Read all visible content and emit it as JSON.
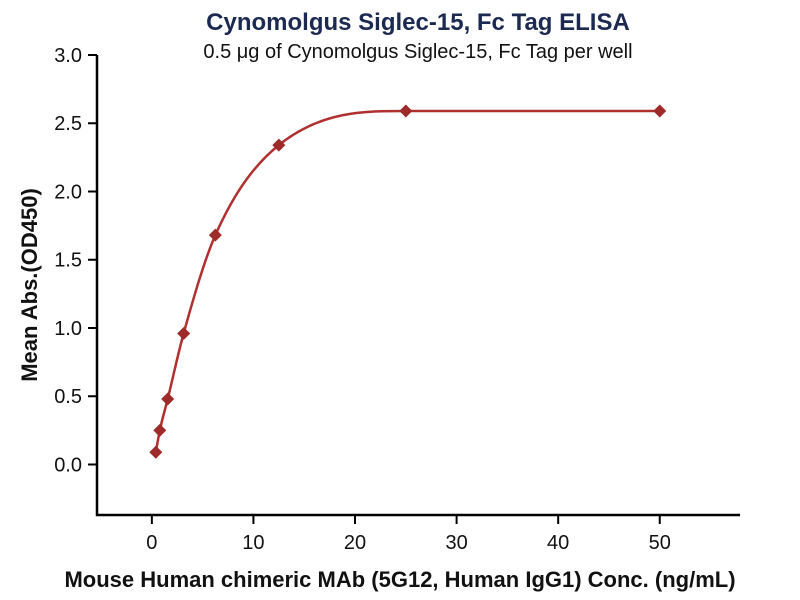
{
  "chart_data": {
    "type": "scatter",
    "title": "Cynomolgus Siglec-15, Fc Tag ELISA",
    "subtitle": "0.5 μg of Cynomolgus Siglec-15, Fc Tag per well",
    "xlabel": "Mouse Human chimeric MAb (5G12, Human IgG1) Conc. (ng/mL)",
    "ylabel": "Mean Abs.(OD450)",
    "x": [
      0.39,
      0.78,
      1.56,
      3.13,
      6.25,
      12.5,
      25,
      50
    ],
    "y": [
      0.09,
      0.25,
      0.48,
      0.96,
      1.68,
      2.34,
      2.59,
      2.59
    ],
    "x_ticks": [
      0,
      10,
      20,
      30,
      40,
      50
    ],
    "x_tick_labels": [
      "0",
      "10",
      "20",
      "30",
      "40",
      "50"
    ],
    "y_ticks": [
      0,
      0.5,
      1,
      1.5,
      2,
      2.5,
      3
    ],
    "y_tick_labels": [
      "0.0",
      "0.5",
      "1.0",
      "1.5",
      "2.0",
      "2.5",
      "3.0"
    ],
    "xlim": [
      -5.4,
      57.9
    ],
    "ylim": [
      -0.37,
      3.0
    ],
    "grid": false,
    "legend": "none",
    "curve": "4PL sigmoid fit through data points",
    "colors": {
      "curve": "#b03030",
      "marker": "#9e2a2a",
      "axis": "#000000",
      "tick_text": "#111111",
      "title": "#1c2951",
      "subtitle": "#111111",
      "axis_label": "#111111"
    }
  }
}
